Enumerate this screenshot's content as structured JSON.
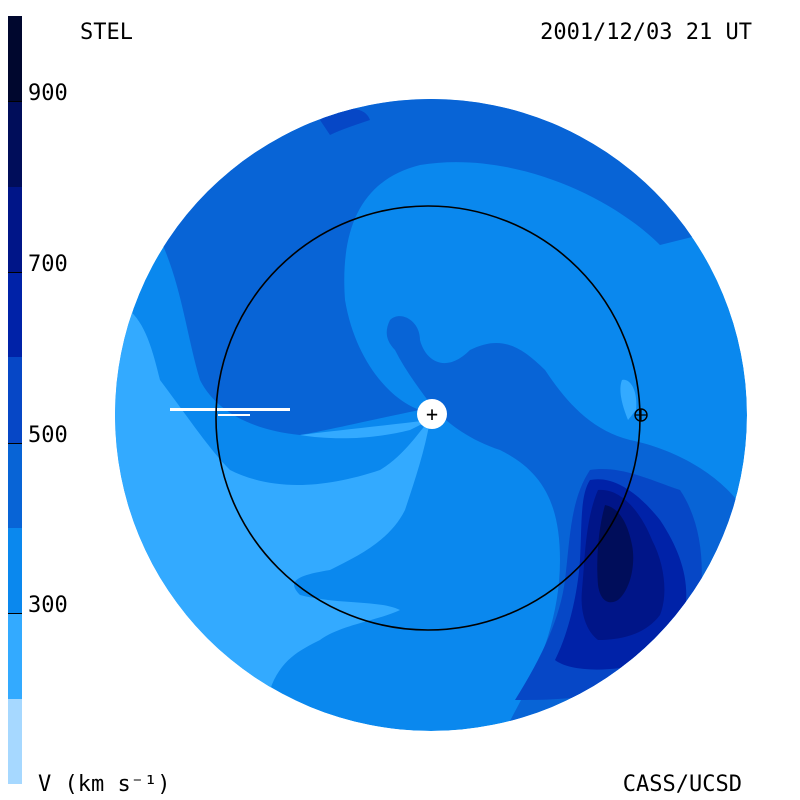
{
  "header": {
    "left_label": "STEL",
    "right_label": "2001/12/03 21 UT"
  },
  "footer": {
    "left_label": "V (km s⁻¹)",
    "right_label": "CASS/UCSD"
  },
  "colorbar": {
    "ticks": [
      "300",
      "500",
      "700",
      "900"
    ],
    "tick_values": [
      300,
      500,
      700,
      900
    ],
    "range": [
      100,
      1000
    ],
    "levels": [
      {
        "from": 100,
        "to": 200,
        "color": "#a6d8ff"
      },
      {
        "from": 200,
        "to": 300,
        "color": "#33aaff"
      },
      {
        "from": 300,
        "to": 400,
        "color": "#0a88ee"
      },
      {
        "from": 400,
        "to": 500,
        "color": "#0864d6"
      },
      {
        "from": 500,
        "to": 600,
        "color": "#0647c6"
      },
      {
        "from": 600,
        "to": 700,
        "color": "#0022a8"
      },
      {
        "from": 700,
        "to": 800,
        "color": "#001588"
      },
      {
        "from": 800,
        "to": 900,
        "color": "#000d5a"
      },
      {
        "from": 900,
        "to": 1000,
        "color": "#00072e"
      }
    ]
  },
  "markers": {
    "sun_symbol": "+",
    "earth_symbol": "earth-symbol-icon"
  }
}
